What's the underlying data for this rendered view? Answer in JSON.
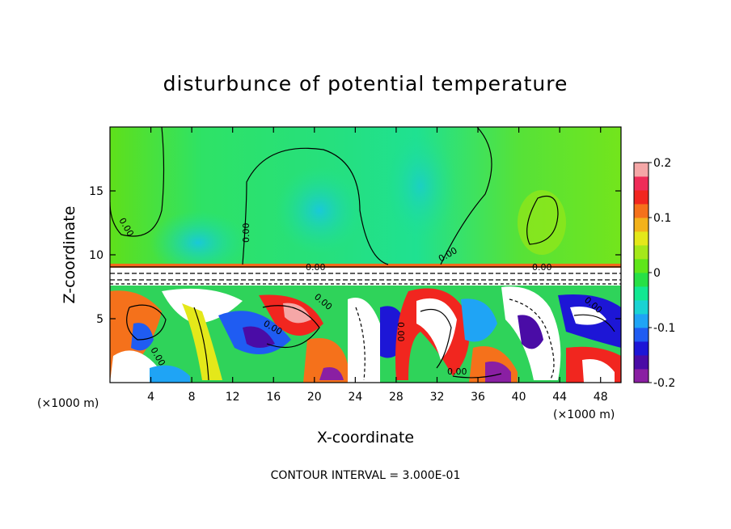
{
  "chart_data": {
    "type": "heatmap",
    "title": "disturbunce of potential temperature",
    "xlabel": "X-coordinate",
    "ylabel": "Z-coordinate",
    "x_unit": "(×1000 m)",
    "y_unit": "(×1000 m)",
    "footer": "CONTOUR INTERVAL = 3.000E-01",
    "xlim": [
      0,
      50
    ],
    "ylim": [
      0,
      20
    ],
    "xticks": [
      4,
      8,
      12,
      16,
      20,
      24,
      28,
      32,
      36,
      40,
      44,
      48
    ],
    "yticks": [
      5,
      10,
      15
    ],
    "colorbar": {
      "range": [
        -0.2,
        0.2
      ],
      "ticks": [
        "0.2",
        "0.1",
        "0",
        "-0.1",
        "-0.2"
      ],
      "colors": [
        "#8a1fa3",
        "#4a0ca6",
        "#1d16d6",
        "#1f5cf2",
        "#1fa4f5",
        "#19d3d3",
        "#12e892",
        "#27e046",
        "#5fe61a",
        "#a5e81a",
        "#e4e81a",
        "#f3b21b",
        "#f5711b",
        "#f1261f",
        "#ef2c58",
        "#f5a7a7"
      ]
    },
    "contour_labels": [
      "0.00",
      "0.00",
      "0.00",
      "0.00",
      "0.00",
      "0.00",
      "0.00",
      "0.00",
      "0.00",
      "0.00",
      "0.00"
    ],
    "grid": false,
    "legend": "right colorbar"
  }
}
